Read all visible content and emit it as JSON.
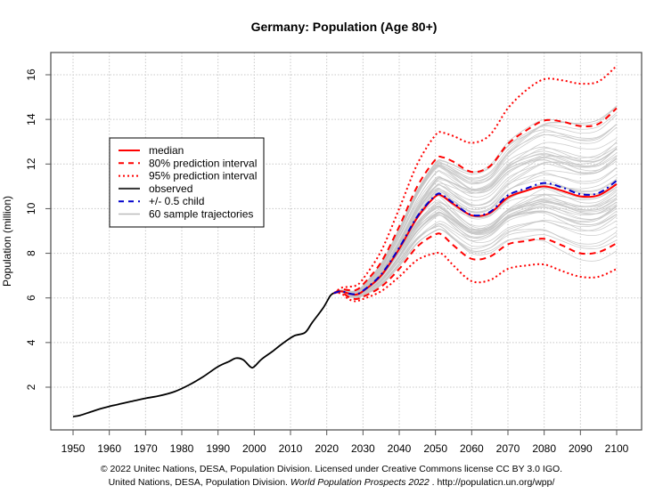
{
  "chart_data": {
    "type": "line",
    "title": "Germany: Population (Age 80+)",
    "xlabel": "",
    "ylabel": "Population (million)",
    "xlim": [
      1947,
      2104
    ],
    "ylim": [
      0.2,
      17.0
    ],
    "x_ticks": [
      1950,
      1960,
      1970,
      1980,
      1990,
      2000,
      2010,
      2020,
      2030,
      2040,
      2050,
      2060,
      2070,
      2080,
      2090,
      2100
    ],
    "y_ticks": [
      2,
      4,
      6,
      8,
      10,
      12,
      14,
      16
    ],
    "grid": true,
    "legend_position": "upper-left",
    "legend": [
      {
        "label": "median",
        "color": "#ff0000",
        "style": "solid"
      },
      {
        "label": "80% prediction interval",
        "color": "#ff0000",
        "style": "dashed"
      },
      {
        "label": "95% prediction interval",
        "color": "#ff0000",
        "style": "dotted"
      },
      {
        "label": "observed",
        "color": "#000000",
        "style": "solid"
      },
      {
        "label": "+/- 0.5 child",
        "color": "#0000cc",
        "style": "dashdot"
      },
      {
        "label": "60 sample trajectories",
        "color": "#bbbbbb",
        "style": "solid"
      }
    ],
    "series": [
      {
        "name": "observed",
        "x": [
          1950,
          1952,
          1955,
          1958,
          1960,
          1963,
          1966,
          1970,
          1974,
          1978,
          1982,
          1986,
          1990,
          1993,
          1995,
          1997,
          1999,
          2000,
          2002,
          2005,
          2008,
          2011,
          2014,
          2016,
          2019,
          2021,
          2022
        ],
        "values": [
          0.68,
          0.74,
          0.9,
          1.05,
          1.14,
          1.25,
          1.36,
          1.5,
          1.62,
          1.8,
          2.1,
          2.48,
          2.92,
          3.15,
          3.3,
          3.22,
          2.9,
          2.92,
          3.25,
          3.6,
          3.98,
          4.3,
          4.45,
          4.9,
          5.55,
          6.1,
          6.22
        ]
      },
      {
        "name": "median",
        "x": [
          2022,
          2024,
          2026,
          2028,
          2030,
          2035,
          2040,
          2045,
          2050,
          2052,
          2055,
          2060,
          2065,
          2070,
          2075,
          2080,
          2085,
          2090,
          2095,
          2100
        ],
        "values": [
          6.22,
          6.3,
          6.2,
          6.15,
          6.3,
          7.0,
          8.2,
          9.6,
          10.55,
          10.55,
          10.2,
          9.7,
          9.8,
          10.5,
          10.8,
          11.0,
          10.8,
          10.55,
          10.6,
          11.1
        ]
      },
      {
        "name": "plus-minus-half-child",
        "x": [
          2022,
          2024,
          2026,
          2028,
          2030,
          2035,
          2040,
          2045,
          2050,
          2052,
          2055,
          2060,
          2065,
          2070,
          2075,
          2080,
          2085,
          2090,
          2095,
          2100
        ],
        "values": [
          6.22,
          6.3,
          6.2,
          6.17,
          6.32,
          7.05,
          8.25,
          9.65,
          10.6,
          10.6,
          10.25,
          9.72,
          9.85,
          10.6,
          10.9,
          11.15,
          10.95,
          10.65,
          10.7,
          11.25
        ]
      },
      {
        "name": "pi80-upper",
        "x": [
          2022,
          2024,
          2026,
          2028,
          2030,
          2035,
          2040,
          2045,
          2050,
          2052,
          2055,
          2060,
          2065,
          2070,
          2075,
          2080,
          2085,
          2090,
          2095,
          2100
        ],
        "values": [
          6.22,
          6.38,
          6.35,
          6.35,
          6.6,
          7.6,
          9.2,
          11.0,
          12.2,
          12.3,
          12.1,
          11.65,
          11.9,
          12.9,
          13.5,
          13.95,
          13.9,
          13.7,
          13.8,
          14.5
        ]
      },
      {
        "name": "pi80-lower",
        "x": [
          2022,
          2024,
          2026,
          2028,
          2030,
          2035,
          2040,
          2045,
          2050,
          2052,
          2055,
          2060,
          2065,
          2070,
          2075,
          2080,
          2085,
          2090,
          2095,
          2100
        ],
        "values": [
          6.22,
          6.25,
          6.05,
          5.95,
          6.05,
          6.5,
          7.3,
          8.3,
          8.85,
          8.8,
          8.35,
          7.75,
          7.85,
          8.4,
          8.55,
          8.65,
          8.35,
          8.0,
          8.05,
          8.45
        ]
      },
      {
        "name": "pi95-upper",
        "x": [
          2022,
          2024,
          2026,
          2028,
          2030,
          2035,
          2040,
          2045,
          2050,
          2052,
          2055,
          2060,
          2065,
          2070,
          2075,
          2080,
          2085,
          2090,
          2095,
          2100
        ],
        "values": [
          6.22,
          6.45,
          6.5,
          6.55,
          6.85,
          8.1,
          10.0,
          12.0,
          13.3,
          13.4,
          13.25,
          12.95,
          13.3,
          14.5,
          15.3,
          15.8,
          15.75,
          15.6,
          15.7,
          16.4
        ]
      },
      {
        "name": "pi95-lower",
        "x": [
          2022,
          2024,
          2026,
          2028,
          2030,
          2035,
          2040,
          2045,
          2050,
          2052,
          2055,
          2060,
          2065,
          2070,
          2075,
          2080,
          2085,
          2090,
          2095,
          2100
        ],
        "values": [
          6.22,
          6.2,
          5.95,
          5.85,
          5.95,
          6.3,
          6.95,
          7.7,
          8.0,
          7.95,
          7.45,
          6.75,
          6.8,
          7.3,
          7.45,
          7.5,
          7.2,
          6.95,
          6.95,
          7.3
        ]
      }
    ],
    "trajectories_count": 60
  },
  "footer": {
    "line1": "© 2022 Unitec Nations, DESA, Population Division. Licensed under Creative Commons license CC BY 3.0 IGO.",
    "line2_prefix": "United Nations, DESA, Population Division. ",
    "line2_italic": "World Population Prospects 2022",
    "line2_suffix": " . http://populaticn.un.org/wpp/"
  }
}
